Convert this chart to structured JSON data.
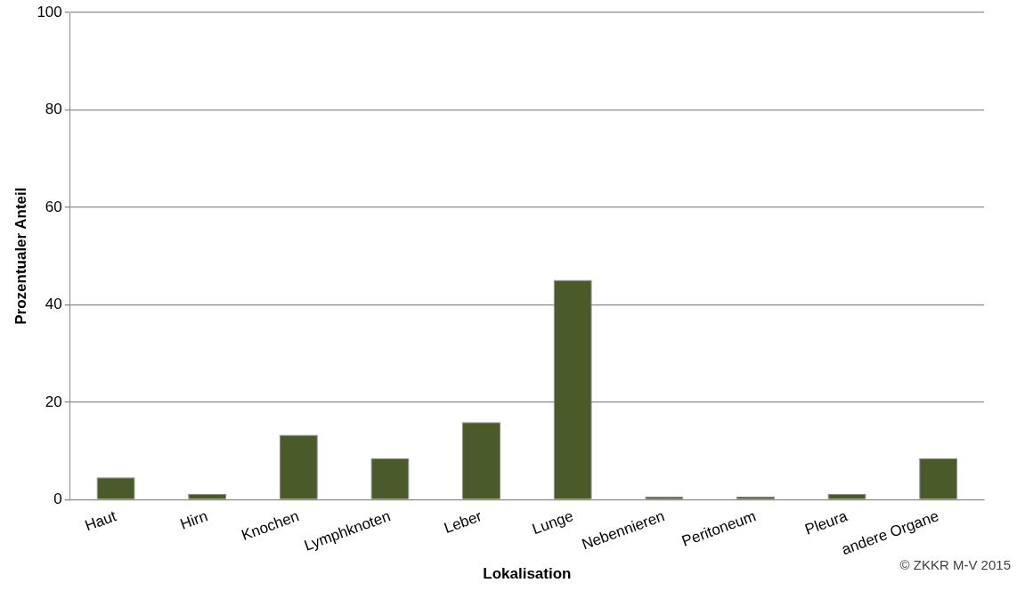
{
  "chart_data": {
    "type": "bar",
    "categories": [
      "Haut",
      "Hirn",
      "Knochen",
      "Lymphknoten",
      "Leber",
      "Lunge",
      "Nebennieren",
      "Peritoneum",
      "Pleura",
      "andere Organe"
    ],
    "values": [
      4.6,
      1.2,
      13.3,
      8.5,
      15.9,
      45.1,
      0.6,
      0.6,
      1.2,
      8.5
    ],
    "color": "#4a5a29",
    "xlabel": "Lokalisation",
    "ylabel": "Prozentualer Anteil",
    "ylim": [
      0,
      100
    ],
    "yticks": [
      0,
      20,
      40,
      60,
      80,
      100
    ],
    "grid": "y",
    "legend": false,
    "annotations": [
      "© ZKKR M-V 2015"
    ]
  }
}
